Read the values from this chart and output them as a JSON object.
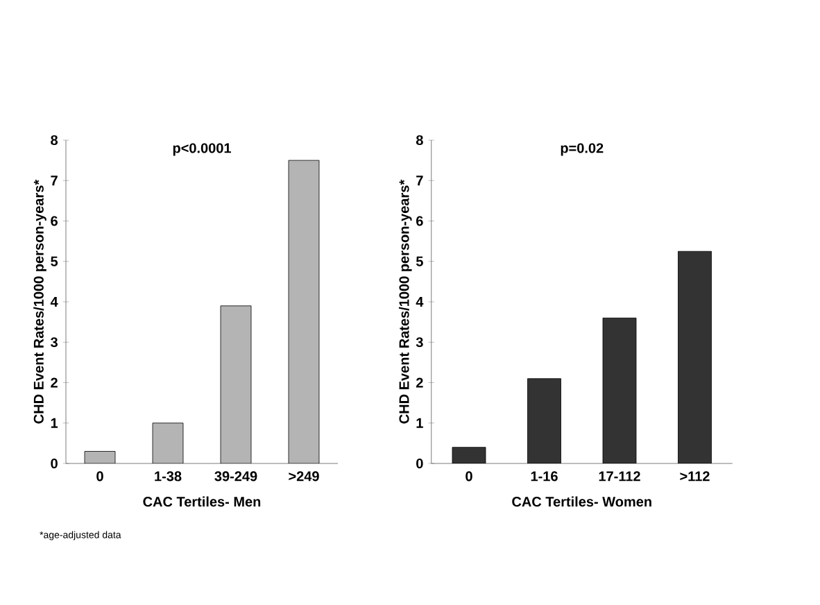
{
  "chart_data": [
    {
      "type": "bar",
      "title": "p<0.0001",
      "xlabel": "CAC Tertiles- Men",
      "ylabel": "CHD Event Rates/1000 person-years*",
      "categories": [
        "0",
        "1-38",
        "39-249",
        ">249"
      ],
      "values": [
        0.3,
        1.0,
        3.9,
        7.5
      ],
      "color": "#b4b4b4",
      "ylim": [
        0,
        8
      ],
      "yticks": [
        0,
        1,
        2,
        3,
        4,
        5,
        6,
        7,
        8
      ],
      "grid": false,
      "annotations": [
        "*age-adjusted data"
      ]
    },
    {
      "type": "bar",
      "title": "p=0.02",
      "xlabel": "CAC Tertiles- Women",
      "ylabel": "CHD Event Rates/1000 person-years*",
      "categories": [
        "0",
        "1-16",
        "17-112",
        ">112"
      ],
      "values": [
        0.4,
        2.1,
        3.6,
        5.25
      ],
      "color": "#333333",
      "ylim": [
        0,
        8
      ],
      "yticks": [
        0,
        1,
        2,
        3,
        4,
        5,
        6,
        7,
        8
      ],
      "grid": false
    }
  ]
}
